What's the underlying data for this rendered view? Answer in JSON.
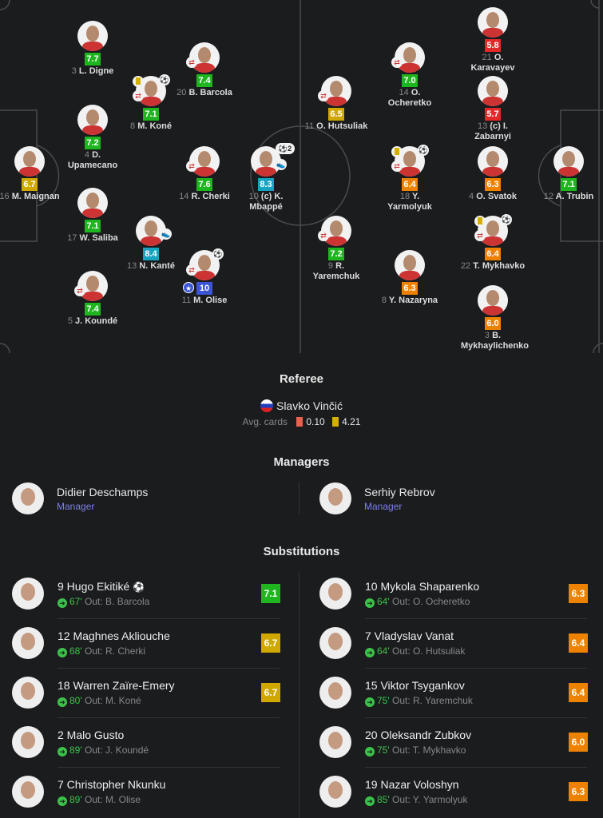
{
  "colors": {
    "green": "#1fb51f",
    "yellow": "#d1a800",
    "orange": "#ec8200",
    "red": "#e02a2a",
    "teal": "#18a3c0",
    "blue": "#3b55d6",
    "bg": "#1b1c1e",
    "manager": "#7b7ff0"
  },
  "home_players": [
    {
      "num": "3",
      "name": "L. Digne",
      "rating": "7.7",
      "color": "green"
    },
    {
      "num": "20",
      "name": "B. Barcola",
      "rating": "7.4",
      "color": "green",
      "sub": true
    },
    {
      "num": "8",
      "name": "M. Koné",
      "rating": "7.1",
      "color": "green",
      "sub": true,
      "yellow": true,
      "ball": true
    },
    {
      "num": "4",
      "name": "D. Upamecano",
      "rating": "7.2",
      "color": "green"
    },
    {
      "num": "16",
      "name": "M. Maignan",
      "rating": "6.7",
      "color": "yellow"
    },
    {
      "num": "14",
      "name": "R. Cherki",
      "rating": "7.6",
      "color": "green",
      "sub": true
    },
    {
      "num": "10",
      "name": "(c) K. Mbappé",
      "rating": "8.3",
      "color": "teal",
      "goals": "2",
      "boot": true
    },
    {
      "num": "17",
      "name": "W. Saliba",
      "rating": "7.1",
      "color": "green"
    },
    {
      "num": "13",
      "name": "N. Kanté",
      "rating": "8.4",
      "color": "teal",
      "boot": true
    },
    {
      "num": "11",
      "name": "M. Olise",
      "rating": "10",
      "color": "blue",
      "sub": true,
      "ball": true,
      "star": true
    },
    {
      "num": "5",
      "name": "J. Koundé",
      "rating": "7.4",
      "color": "green",
      "sub": true
    }
  ],
  "away_players": [
    {
      "num": "21",
      "name": "O. Karavayev",
      "rating": "5.8",
      "color": "red"
    },
    {
      "num": "14",
      "name": "O. Ocheretko",
      "rating": "7.0",
      "color": "green",
      "sub": true
    },
    {
      "num": "13",
      "name": "(c) I. Zabarnyi",
      "rating": "5.7",
      "color": "red"
    },
    {
      "num": "11",
      "name": "O. Hutsuliak",
      "rating": "6.5",
      "color": "yellow",
      "sub": true
    },
    {
      "num": "18",
      "name": "Y. Yarmolyuk",
      "rating": "6.4",
      "color": "orange",
      "sub": true,
      "yellow": true,
      "ball": true
    },
    {
      "num": "4",
      "name": "O. Svatok",
      "rating": "6.3",
      "color": "orange"
    },
    {
      "num": "12",
      "name": "A. Trubin",
      "rating": "7.1",
      "color": "green"
    },
    {
      "num": "9",
      "name": "R. Yaremchuk",
      "rating": "7.2",
      "color": "green",
      "sub": true
    },
    {
      "num": "22",
      "name": "T. Mykhavko",
      "rating": "6.4",
      "color": "orange",
      "sub": true,
      "yellow": true,
      "ball": true
    },
    {
      "num": "8",
      "name": "Y. Nazaryna",
      "rating": "6.3",
      "color": "orange"
    },
    {
      "num": "3",
      "name": "B. Mykhaylichenko",
      "rating": "6.0",
      "color": "orange"
    }
  ],
  "referee": {
    "title": "Referee",
    "name": "Slavko Vinčić",
    "avg_label": "Avg. cards",
    "red_avg": "0.10",
    "yellow_avg": "4.21"
  },
  "managers": {
    "title": "Managers",
    "home": {
      "name": "Didier Deschamps",
      "role": "Manager"
    },
    "away": {
      "name": "Serhiy Rebrov",
      "role": "Manager"
    }
  },
  "substitutions": {
    "title": "Substitutions",
    "out_label": "Out:",
    "home": [
      {
        "name": "9 Hugo Ekitiké",
        "minute": "67'",
        "out": "B. Barcola",
        "rating": "7.1",
        "color": "green",
        "ball": true
      },
      {
        "name": "12 Maghnes Akliouche",
        "minute": "68'",
        "out": "R. Cherki",
        "rating": "6.7",
        "color": "yellow"
      },
      {
        "name": "18 Warren Zaïre-Emery",
        "minute": "80'",
        "out": "M. Koné",
        "rating": "6.7",
        "color": "yellow"
      },
      {
        "name": "2 Malo Gusto",
        "minute": "89'",
        "out": "J. Koundé"
      },
      {
        "name": "7 Christopher Nkunku",
        "minute": "89'",
        "out": "M. Olise"
      }
    ],
    "away": [
      {
        "name": "10 Mykola Shaparenko",
        "minute": "64'",
        "out": "O. Ocheretko",
        "rating": "6.3",
        "color": "orange"
      },
      {
        "name": "7 Vladyslav Vanat",
        "minute": "64'",
        "out": "O. Hutsuliak",
        "rating": "6.4",
        "color": "orange"
      },
      {
        "name": "15 Viktor Tsygankov",
        "minute": "75'",
        "out": "R. Yaremchuk",
        "rating": "6.4",
        "color": "orange"
      },
      {
        "name": "20 Oleksandr Zubkov",
        "minute": "75'",
        "out": "T. Mykhavko",
        "rating": "6.0",
        "color": "orange"
      },
      {
        "name": "19 Nazar Voloshyn",
        "minute": "85'",
        "out": "Y. Yarmolyuk",
        "rating": "6.3",
        "color": "orange"
      }
    ]
  }
}
